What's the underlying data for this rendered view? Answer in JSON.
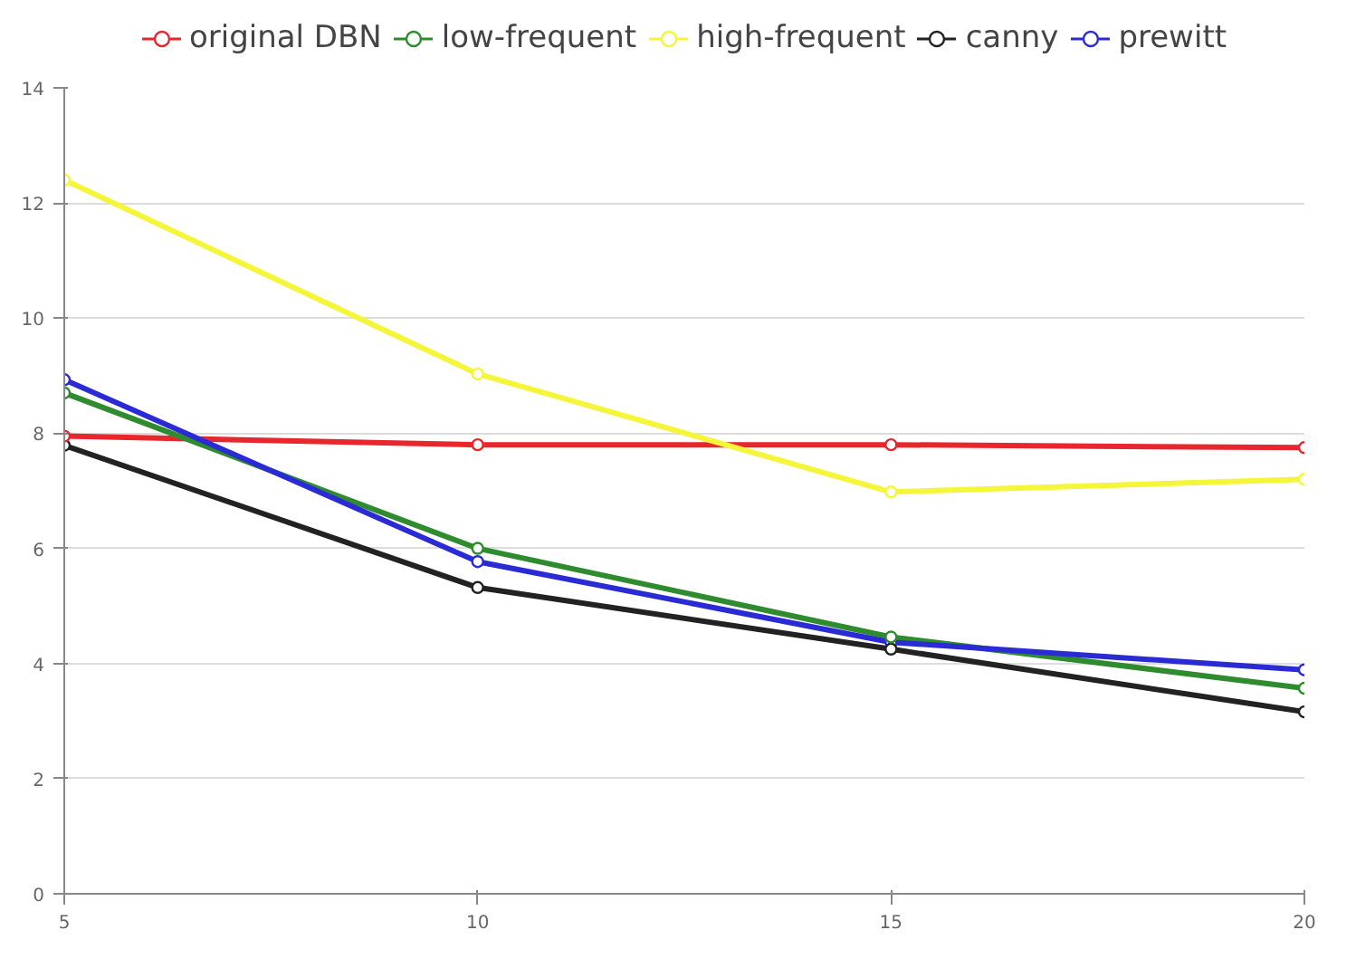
{
  "chart_data": {
    "type": "line",
    "x": [
      5,
      10,
      15,
      20
    ],
    "xlim": [
      5,
      20
    ],
    "xticks": [
      5,
      10,
      15,
      20
    ],
    "ylim": [
      0,
      14
    ],
    "yticks": [
      0,
      2,
      4,
      6,
      8,
      10,
      12,
      14
    ],
    "grid": "y",
    "legend": "top",
    "marker": "circle",
    "line_style": "solid",
    "series": [
      {
        "name": "original DBN",
        "color": "#e8262e",
        "values": [
          7.95,
          7.8,
          7.8,
          7.75
        ]
      },
      {
        "name": "low-frequent",
        "color": "#2e8b2e",
        "values": [
          8.7,
          6.0,
          4.46,
          3.57
        ]
      },
      {
        "name": "high-frequent",
        "color": "#f5f53a",
        "values": [
          12.4,
          9.03,
          6.98,
          7.2
        ]
      },
      {
        "name": "canny",
        "color": "#222222",
        "values": [
          7.79,
          5.32,
          4.25,
          3.16
        ]
      },
      {
        "name": "prewitt",
        "color": "#2b2bd6",
        "values": [
          8.93,
          5.77,
          4.37,
          3.89
        ]
      }
    ]
  }
}
